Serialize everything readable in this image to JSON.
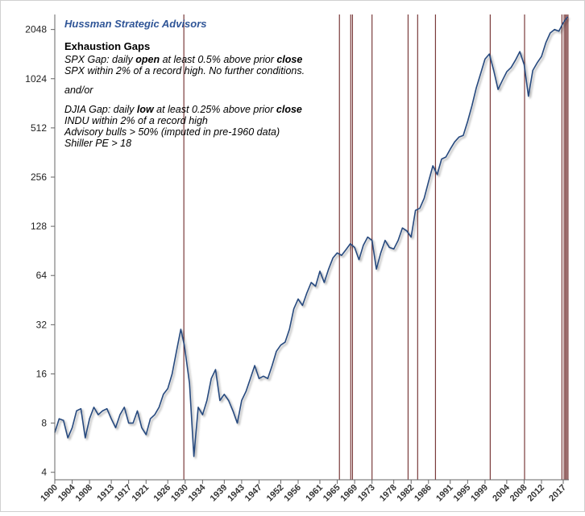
{
  "chart_data": {
    "type": "line",
    "title": "Hussman Strategic Advisors",
    "annotation": {
      "heading": "Exhaustion Gaps",
      "lines": [
        [
          "SPX Gap: daily ",
          "open",
          " at least 0.5% above prior ",
          "close"
        ],
        [
          "SPX within 2% of a record high. No further conditions."
        ],
        [
          "and/or"
        ],
        [
          "DJIA Gap: daily ",
          "low",
          " at least 0.25% above prior ",
          "close"
        ],
        [
          "INDU within 2% of a record high"
        ],
        [
          "Advisory bulls > 50% (imputed in pre-1960 data)"
        ],
        [
          "Shiller PE > 18"
        ]
      ]
    },
    "log_scale": true,
    "grid": false,
    "xlim": [
      1900,
      2018.3
    ],
    "xticks": [
      1900,
      1904,
      1908,
      1913,
      1917,
      1921,
      1926,
      1930,
      1934,
      1939,
      1943,
      1947,
      1952,
      1956,
      1961,
      1965,
      1969,
      1973,
      1978,
      1982,
      1986,
      1991,
      1995,
      1999,
      2004,
      2008,
      2012,
      2017
    ],
    "ylim": [
      3.6,
      2530
    ],
    "yticks": [
      4,
      8,
      16,
      32,
      64,
      128,
      256,
      512,
      1024,
      2048
    ],
    "event_color": "#7a3b3b",
    "events": [
      1929.7,
      1965.5,
      1968.1,
      1968.5,
      1973.0,
      1981.3,
      1983.5,
      1987.6,
      2000.2,
      2008.1,
      2016.7,
      2017.2,
      2017.5,
      2017.8,
      2018.1
    ],
    "series": [
      {
        "color": "#27497e",
        "x": [
          1900,
          1901,
          1902,
          1903,
          1904,
          1905,
          1906,
          1907,
          1908,
          1909,
          1910,
          1911,
          1912,
          1913,
          1914,
          1915,
          1916,
          1917,
          1918,
          1919,
          1920,
          1921,
          1922,
          1923,
          1924,
          1925,
          1926,
          1927,
          1928,
          1929,
          1929.8,
          1930,
          1931,
          1932,
          1933,
          1934,
          1935,
          1936,
          1937,
          1938,
          1939,
          1940,
          1941,
          1942,
          1943,
          1944,
          1945,
          1946,
          1947,
          1948,
          1949,
          1950,
          1951,
          1952,
          1953,
          1954,
          1955,
          1956,
          1957,
          1958,
          1959,
          1960,
          1961,
          1962,
          1963,
          1964,
          1965,
          1966,
          1967,
          1968,
          1969,
          1970,
          1971,
          1972,
          1973,
          1974,
          1975,
          1976,
          1977,
          1978,
          1979,
          1980,
          1981,
          1982,
          1983,
          1984,
          1985,
          1986,
          1987,
          1988,
          1989,
          1990,
          1991,
          1992,
          1993,
          1994,
          1995,
          1996,
          1997,
          1998,
          1999,
          2000,
          2001,
          2002,
          2003,
          2004,
          2005,
          2006,
          2007,
          2008,
          2009,
          2010,
          2011,
          2012,
          2013,
          2014,
          2015,
          2016,
          2017,
          2018
        ],
        "values": [
          7,
          8.5,
          8.3,
          6.5,
          7.5,
          9.5,
          9.8,
          6.5,
          8.5,
          10,
          9,
          9.5,
          9.8,
          8.5,
          7.5,
          9,
          10,
          8,
          8,
          9.5,
          7.5,
          6.8,
          8.5,
          9,
          10,
          12,
          13,
          16,
          22,
          30,
          24,
          22,
          14,
          5,
          10,
          9,
          11,
          15,
          17,
          11,
          12,
          11,
          9.5,
          8,
          11,
          12.5,
          15,
          18,
          15,
          15.5,
          15,
          18,
          22,
          24,
          25,
          30,
          40,
          46,
          42,
          50,
          58,
          55,
          68,
          58,
          70,
          82,
          88,
          85,
          92,
          100,
          95,
          80,
          98,
          110,
          105,
          70,
          88,
          105,
          95,
          93,
          105,
          125,
          120,
          110,
          160,
          165,
          190,
          240,
          300,
          265,
          330,
          340,
          380,
          420,
          450,
          460,
          560,
          700,
          900,
          1100,
          1350,
          1450,
          1150,
          880,
          1000,
          1130,
          1200,
          1330,
          1500,
          1250,
          800,
          1150,
          1280,
          1400,
          1700,
          1950,
          2050,
          2000,
          2250,
          2450
        ]
      }
    ]
  }
}
